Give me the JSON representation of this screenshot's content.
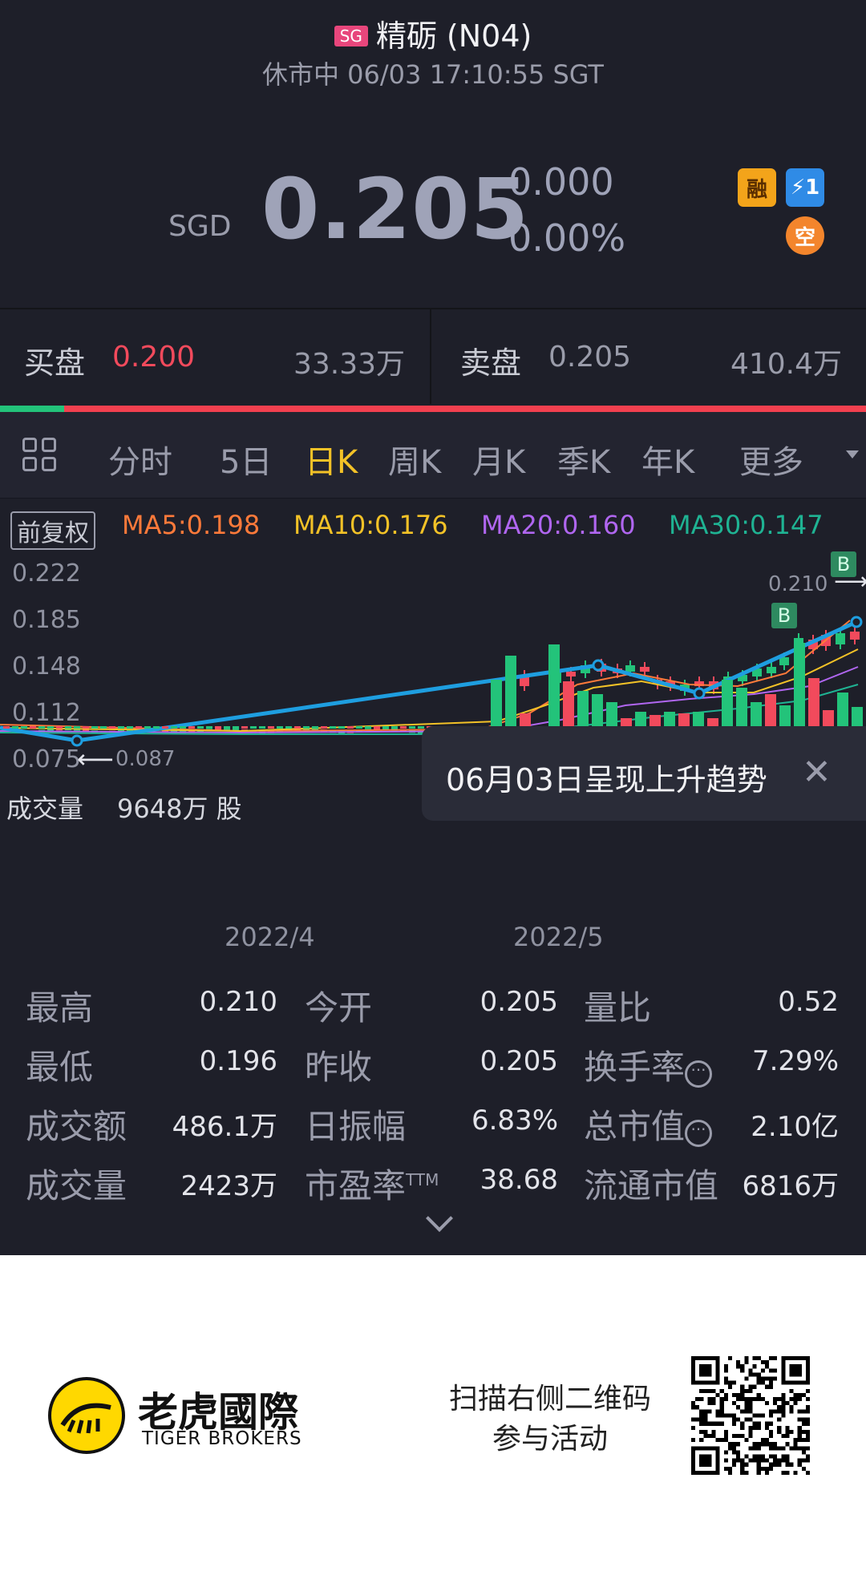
{
  "header": {
    "market_badge": "SG",
    "title": "精砺 (N04)",
    "status_line": "休市中 06/03 17:10:55 SGT"
  },
  "quote": {
    "currency": "SGD",
    "price": "0.205",
    "change": "0.000",
    "change_pct": "0.00%",
    "icons": [
      "margin-icon",
      "lightning-icon",
      "short-icon"
    ],
    "margin_icon_text": "融",
    "lightning_icon_text": "⚡1",
    "short_icon_text": "空"
  },
  "order_book": {
    "bid_label": "买盘",
    "bid_price": "0.200",
    "bid_volume": "33.33万",
    "ask_label": "卖盘",
    "ask_price": "0.205",
    "ask_volume": "410.4万"
  },
  "tabs": [
    "分时",
    "5日",
    "日K",
    "周K",
    "月K",
    "季K",
    "年K",
    "更多"
  ],
  "active_tab": "日K",
  "indicators": {
    "adjust": "前复权",
    "ma5": "MA5:0.198",
    "ma10": "MA10:0.176",
    "ma20": "MA20:0.160",
    "ma30": "MA30:0.147"
  },
  "colors": {
    "ma5": "#ff7a3a",
    "ma10": "#f3c227",
    "ma20": "#b066f0",
    "ma30": "#1fb393",
    "up": "#f24a5c",
    "down": "#23c37a",
    "trend": "#1e9ee0",
    "active_tab": "#f3c227"
  },
  "chart": {
    "y_ticks": [
      "0.222",
      "0.185",
      "0.148",
      "0.112",
      "0.075"
    ],
    "x_ticks": [
      "2022/4",
      "2022/5"
    ],
    "high_marker": "0.210",
    "low_marker": "0.087",
    "buy_marker": "B",
    "volume_label": "成交量",
    "volume_value": "9648万 股"
  },
  "tooltip": {
    "text": "06月03日呈现上升趋势"
  },
  "stats": [
    {
      "label": "最高",
      "value": "0.210"
    },
    {
      "label": "今开",
      "value": "0.205"
    },
    {
      "label": "量比",
      "value": "0.52"
    },
    {
      "label": "最低",
      "value": "0.196"
    },
    {
      "label": "昨收",
      "value": "0.205"
    },
    {
      "label": "换手率",
      "value": "7.29%"
    },
    {
      "label": "成交额",
      "value": "486.1万"
    },
    {
      "label": "日振幅",
      "value": "6.83%"
    },
    {
      "label": "总市值",
      "value": "2.10亿"
    },
    {
      "label": "成交量",
      "value": "2423万"
    },
    {
      "label": "市盈率",
      "value": "38.68"
    },
    {
      "label": "流通市值",
      "value": "6816万"
    }
  ],
  "pe_suffix": "TTM",
  "info_dots": "···",
  "footer": {
    "brand_cn": "老虎國際",
    "brand_en": "TIGER BROKERS",
    "promo_line1": "扫描右侧二维码",
    "promo_line2": "参与活动"
  }
}
